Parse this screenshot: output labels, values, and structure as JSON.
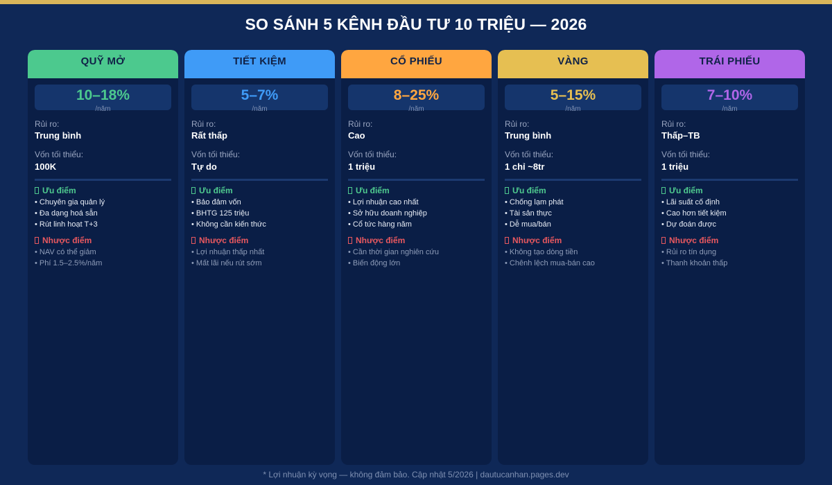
{
  "title": "SO SÁNH 5 KÊNH ĐẦU TƯ 10 TRIỆU — 2026",
  "labels": {
    "risk": "Rủi ro:",
    "min_capital": "Vốn tối thiểu:",
    "pros": "Ưu điểm",
    "cons": "Nhược điểm"
  },
  "cards": [
    {
      "name": "QUỸ MỞ",
      "color": "#4cc98e",
      "return": "10–18%",
      "return_unit": "/năm",
      "risk": "Trung bình",
      "min_capital": "100K",
      "pros": [
        "• Chuyên gia quản lý",
        "• Đa dạng hoá sẵn",
        "• Rút linh hoạt T+3"
      ],
      "cons": [
        "• NAV có thể giảm",
        "• Phí 1.5–2.5%/năm"
      ]
    },
    {
      "name": "TIẾT KIỆM",
      "color": "#3f9bf7",
      "return": "5–7%",
      "return_unit": "/năm",
      "risk": "Rất thấp",
      "min_capital": "Tự do",
      "pros": [
        "• Bảo đảm vốn",
        "• BHTG 125 triệu",
        "• Không cần kiến thức"
      ],
      "cons": [
        "• Lợi nhuận thấp nhất",
        "• Mất lãi nếu rút sớm"
      ]
    },
    {
      "name": "CỔ PHIẾU",
      "color": "#ffa640",
      "return": "8–25%",
      "return_unit": "/năm",
      "risk": "Cao",
      "min_capital": "1 triệu",
      "pros": [
        "• Lợi nhuận cao nhất",
        "• Sở hữu doanh nghiệp",
        "• Cổ tức hàng năm"
      ],
      "cons": [
        "• Cần thời gian nghiên cứu",
        "• Biến động lớn"
      ]
    },
    {
      "name": "VÀNG",
      "color": "#e6bf52",
      "return": "5–15%",
      "return_unit": "/năm",
      "risk": "Trung bình",
      "min_capital": "1 chỉ ~8tr",
      "pros": [
        "• Chống lạm phát",
        "• Tài sản thực",
        "• Dễ mua/bán"
      ],
      "cons": [
        "• Không tạo dòng tiền",
        "• Chênh lệch mua-bán cao"
      ]
    },
    {
      "name": "TRÁI PHIẾU",
      "color": "#b066e8",
      "return": "7–10%",
      "return_unit": "/năm",
      "risk": "Thấp–TB",
      "min_capital": "1 triệu",
      "pros": [
        "• Lãi suất cố định",
        "• Cao hơn tiết kiệm",
        "• Dự đoán được"
      ],
      "cons": [
        "• Rủi ro tín dụng",
        "• Thanh khoản thấp"
      ]
    }
  ],
  "footer": "* Lợi nhuận kỳ vọng — không đảm bảo. Cập nhật 5/2026 | dautucanhan.pages.dev"
}
